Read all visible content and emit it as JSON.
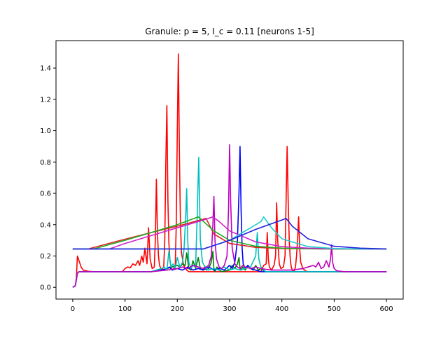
{
  "chart_data": {
    "type": "line",
    "title": "Granule: p = 5, I_c = 0.11 [neurons 1-5]",
    "xlabel": "",
    "ylabel": "",
    "xlim": [
      -32,
      632
    ],
    "ylim": [
      -0.075,
      1.575
    ],
    "xticks": [
      0,
      100,
      200,
      300,
      400,
      500,
      600
    ],
    "yticks": [
      0.0,
      0.2,
      0.4,
      0.6,
      0.8,
      1.0,
      1.2,
      1.4
    ],
    "ytick_labels": [
      "0.0",
      "0.2",
      "0.4",
      "0.6",
      "0.8",
      "1.0",
      "1.2",
      "1.4"
    ],
    "grid": false,
    "legend": "none",
    "series": [
      {
        "color": "#ff0000",
        "x": [
          0,
          5,
          7,
          9,
          12,
          16,
          20,
          30,
          40,
          60,
          80,
          95,
          100,
          105,
          110,
          115,
          120,
          125,
          128,
          132,
          135,
          138,
          142,
          145,
          148,
          152,
          156,
          158,
          160,
          162,
          164,
          166,
          170,
          174,
          176,
          178,
          180,
          182,
          184,
          186,
          188,
          190,
          196,
          198,
          200,
          202,
          204,
          206,
          208,
          212,
          218,
          222,
          240,
          260,
          280,
          300,
          320,
          340,
          360,
          365,
          370,
          372,
          374,
          376,
          380,
          385,
          388,
          390,
          392,
          395,
          398,
          403,
          406,
          408,
          410,
          412,
          414,
          416,
          418,
          420,
          423,
          426,
          428,
          430,
          432,
          434,
          436,
          440,
          445,
          450,
          460,
          480,
          500,
          520,
          540,
          560,
          580,
          600
        ],
        "y": [
          0.0,
          0.01,
          0.06,
          0.2,
          0.17,
          0.13,
          0.11,
          0.102,
          0.1,
          0.1,
          0.1,
          0.1,
          0.12,
          0.13,
          0.125,
          0.15,
          0.14,
          0.17,
          0.14,
          0.2,
          0.16,
          0.25,
          0.15,
          0.38,
          0.18,
          0.12,
          0.13,
          0.3,
          0.69,
          0.35,
          0.2,
          0.14,
          0.11,
          0.13,
          0.3,
          0.8,
          1.16,
          0.55,
          0.28,
          0.17,
          0.13,
          0.11,
          0.13,
          0.4,
          1.0,
          1.49,
          0.85,
          0.4,
          0.22,
          0.14,
          0.11,
          0.1,
          0.1,
          0.1,
          0.1,
          0.1,
          0.1,
          0.1,
          0.1,
          0.14,
          0.15,
          0.35,
          0.18,
          0.13,
          0.11,
          0.14,
          0.2,
          0.54,
          0.3,
          0.15,
          0.12,
          0.13,
          0.2,
          0.55,
          0.9,
          0.55,
          0.3,
          0.18,
          0.13,
          0.11,
          0.1,
          0.13,
          0.2,
          0.3,
          0.45,
          0.25,
          0.16,
          0.12,
          0.105,
          0.1,
          0.1,
          0.1,
          0.1,
          0.1,
          0.1,
          0.1,
          0.1,
          0.1
        ]
      },
      {
        "color": "#008000",
        "x": [
          0,
          5,
          7,
          9,
          12,
          20,
          60,
          100,
          150,
          160,
          170,
          180,
          190,
          200,
          205,
          210,
          215,
          218,
          222,
          226,
          230,
          235,
          240,
          244,
          248,
          252,
          256,
          260,
          265,
          268,
          270,
          272,
          276,
          280,
          285,
          300,
          305,
          310,
          315,
          318,
          320,
          322,
          325,
          330,
          335,
          340,
          345,
          350,
          355,
          360,
          365,
          370,
          380,
          400,
          450,
          500,
          550,
          600
        ],
        "y": [
          0.0,
          0.01,
          0.05,
          0.09,
          0.1,
          0.1,
          0.1,
          0.1,
          0.1,
          0.11,
          0.11,
          0.12,
          0.13,
          0.14,
          0.13,
          0.15,
          0.14,
          0.22,
          0.12,
          0.11,
          0.17,
          0.12,
          0.19,
          0.12,
          0.11,
          0.13,
          0.11,
          0.12,
          0.16,
          0.23,
          0.11,
          0.1,
          0.13,
          0.11,
          0.1,
          0.11,
          0.14,
          0.12,
          0.15,
          0.19,
          0.12,
          0.11,
          0.13,
          0.11,
          0.14,
          0.12,
          0.11,
          0.14,
          0.11,
          0.12,
          0.105,
          0.1,
          0.1,
          0.1,
          0.1,
          0.1,
          0.1,
          0.1
        ]
      },
      {
        "color": "#0000ff",
        "x": [
          0,
          5,
          7,
          9,
          12,
          20,
          60,
          100,
          150,
          170,
          180,
          185,
          190,
          200,
          210,
          220,
          230,
          240,
          250,
          260,
          270,
          280,
          290,
          300,
          305,
          310,
          315,
          318,
          320,
          322,
          324,
          326,
          330,
          335,
          340,
          350,
          360,
          370,
          380,
          400,
          450,
          500,
          550,
          600
        ],
        "y": [
          0.0,
          0.01,
          0.05,
          0.09,
          0.1,
          0.1,
          0.1,
          0.1,
          0.1,
          0.11,
          0.12,
          0.13,
          0.11,
          0.12,
          0.11,
          0.13,
          0.11,
          0.12,
          0.11,
          0.13,
          0.11,
          0.12,
          0.11,
          0.14,
          0.12,
          0.16,
          0.3,
          0.6,
          0.9,
          0.5,
          0.25,
          0.15,
          0.12,
          0.14,
          0.12,
          0.11,
          0.1,
          0.1,
          0.1,
          0.1,
          0.1,
          0.1,
          0.1,
          0.1
        ]
      },
      {
        "color": "#00bfbf",
        "x": [
          0,
          5,
          7,
          9,
          12,
          20,
          60,
          100,
          150,
          160,
          170,
          175,
          180,
          184,
          188,
          192,
          196,
          200,
          205,
          210,
          213,
          216,
          218,
          220,
          222,
          226,
          230,
          235,
          238,
          241,
          244,
          248,
          255,
          260,
          270,
          280,
          290,
          300,
          310,
          320,
          330,
          340,
          350,
          353,
          356,
          360,
          365,
          370,
          380,
          400,
          450,
          500,
          550,
          600
        ],
        "y": [
          0.0,
          0.01,
          0.05,
          0.09,
          0.1,
          0.1,
          0.1,
          0.1,
          0.1,
          0.11,
          0.12,
          0.13,
          0.11,
          0.23,
          0.13,
          0.15,
          0.12,
          0.19,
          0.13,
          0.16,
          0.25,
          0.45,
          0.63,
          0.3,
          0.16,
          0.12,
          0.14,
          0.13,
          0.45,
          0.83,
          0.3,
          0.16,
          0.12,
          0.11,
          0.12,
          0.11,
          0.13,
          0.11,
          0.12,
          0.11,
          0.12,
          0.13,
          0.2,
          0.35,
          0.18,
          0.13,
          0.11,
          0.1,
          0.1,
          0.1,
          0.1,
          0.1,
          0.1,
          0.1
        ]
      },
      {
        "color": "#bf00bf",
        "x": [
          0,
          5,
          7,
          9,
          12,
          20,
          60,
          100,
          150,
          180,
          200,
          210,
          220,
          230,
          240,
          250,
          260,
          265,
          268,
          270,
          272,
          275,
          280,
          285,
          290,
          295,
          298,
          300,
          302,
          305,
          310,
          315,
          320,
          325,
          330,
          340,
          350,
          360,
          380,
          400,
          420,
          440,
          450,
          460,
          465,
          470,
          475,
          480,
          485,
          490,
          493,
          495,
          497,
          500,
          505,
          520,
          550,
          600
        ],
        "y": [
          0.0,
          0.01,
          0.05,
          0.09,
          0.1,
          0.1,
          0.1,
          0.1,
          0.1,
          0.11,
          0.12,
          0.13,
          0.12,
          0.14,
          0.13,
          0.12,
          0.14,
          0.2,
          0.4,
          0.58,
          0.3,
          0.18,
          0.13,
          0.12,
          0.14,
          0.2,
          0.5,
          0.91,
          0.55,
          0.25,
          0.15,
          0.13,
          0.12,
          0.14,
          0.13,
          0.12,
          0.13,
          0.12,
          0.11,
          0.11,
          0.11,
          0.12,
          0.13,
          0.14,
          0.13,
          0.16,
          0.12,
          0.13,
          0.17,
          0.13,
          0.18,
          0.27,
          0.16,
          0.12,
          0.105,
          0.1,
          0.1,
          0.1
        ]
      },
      {
        "color": "#dd2222",
        "x": [
          0,
          20,
          30,
          80,
          150,
          200,
          255,
          270,
          300,
          350,
          400,
          450,
          500,
          550,
          600
        ],
        "y": [
          0.245,
          0.245,
          0.245,
          0.29,
          0.35,
          0.39,
          0.44,
          0.34,
          0.28,
          0.255,
          0.248,
          0.246,
          0.245,
          0.245,
          0.245
        ]
      },
      {
        "color": "#22aa22",
        "x": [
          0,
          40,
          100,
          150,
          200,
          240,
          250,
          270,
          300,
          350,
          400,
          450,
          500,
          550,
          600
        ],
        "y": [
          0.245,
          0.245,
          0.3,
          0.35,
          0.4,
          0.45,
          0.42,
          0.36,
          0.3,
          0.262,
          0.25,
          0.246,
          0.245,
          0.245,
          0.245
        ]
      },
      {
        "color": "#cc22cc",
        "x": [
          0,
          50,
          70,
          100,
          150,
          200,
          250,
          268,
          280,
          300,
          350,
          400,
          450,
          500,
          550,
          600
        ],
        "y": [
          0.245,
          0.245,
          0.245,
          0.28,
          0.33,
          0.38,
          0.43,
          0.45,
          0.42,
          0.36,
          0.29,
          0.26,
          0.25,
          0.246,
          0.245,
          0.245
        ]
      },
      {
        "color": "#22cccc",
        "x": [
          0,
          50,
          100,
          150,
          200,
          250,
          300,
          360,
          365,
          380,
          400,
          450,
          500,
          550,
          600
        ],
        "y": [
          0.245,
          0.245,
          0.245,
          0.245,
          0.245,
          0.245,
          0.3,
          0.42,
          0.45,
          0.38,
          0.31,
          0.26,
          0.248,
          0.245,
          0.245
        ]
      },
      {
        "color": "#2222dd",
        "x": [
          0,
          50,
          100,
          150,
          200,
          250,
          300,
          350,
          400,
          408,
          420,
          450,
          500,
          550,
          600
        ],
        "y": [
          0.245,
          0.245,
          0.245,
          0.245,
          0.245,
          0.245,
          0.3,
          0.37,
          0.43,
          0.44,
          0.39,
          0.31,
          0.262,
          0.25,
          0.245
        ]
      }
    ]
  }
}
